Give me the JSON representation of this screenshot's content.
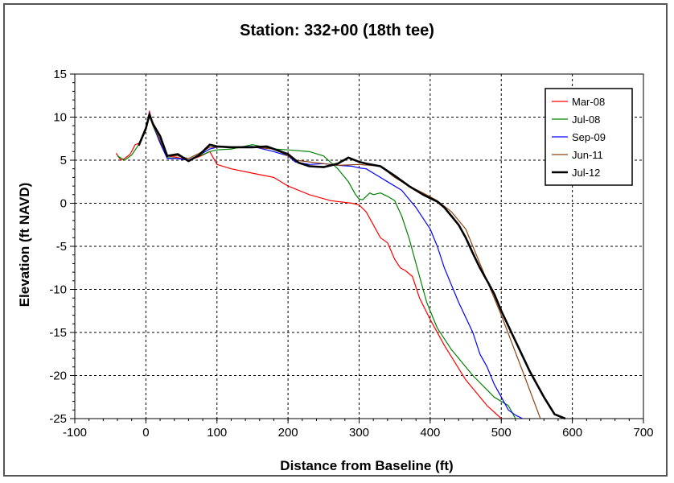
{
  "chart_data": {
    "type": "line",
    "title": "Station: 332+00 (18th tee)",
    "xlabel": "Distance from Baseline (ft)",
    "ylabel": "Elevation (ft NAVD)",
    "xlim": [
      -100,
      700
    ],
    "ylim": [
      -25,
      15
    ],
    "xticks": [
      -100,
      0,
      100,
      200,
      300,
      400,
      500,
      600,
      700
    ],
    "yticks": [
      15,
      10,
      5,
      0,
      -5,
      -10,
      -15,
      -20,
      -25
    ],
    "grid": true,
    "legend_position": "top-right",
    "series": [
      {
        "name": "Mar-08",
        "color": "#ff0000",
        "width": 1.2,
        "x": [
          -42,
          -35,
          -30,
          -22,
          -15,
          -8,
          0,
          5,
          10,
          20,
          30,
          45,
          60,
          75,
          90,
          100,
          120,
          150,
          180,
          200,
          230,
          260,
          290,
          300,
          310,
          320,
          330,
          340,
          350,
          358,
          365,
          375,
          385,
          400,
          420,
          450,
          480,
          500
        ],
        "y": [
          5.8,
          5.0,
          5.2,
          5.7,
          6.8,
          7.0,
          8.5,
          10.7,
          9.0,
          7.2,
          5.5,
          5.3,
          5.0,
          5.4,
          6.0,
          4.5,
          4.0,
          3.5,
          3.0,
          2.0,
          1.0,
          0.3,
          0,
          -0.2,
          -1.0,
          -2.5,
          -4.0,
          -4.6,
          -6.5,
          -7.5,
          -7.8,
          -8.5,
          -11.0,
          -13.5,
          -16.5,
          -20.5,
          -23.5,
          -25
        ]
      },
      {
        "name": "Jul-08",
        "color": "#008000",
        "width": 1.2,
        "x": [
          -40,
          -30,
          -20,
          -10,
          0,
          5,
          10,
          20,
          30,
          45,
          60,
          75,
          90,
          100,
          120,
          150,
          180,
          200,
          230,
          250,
          270,
          285,
          295,
          300,
          305,
          310,
          315,
          320,
          330,
          340,
          350,
          360,
          370,
          380,
          395,
          410,
          430,
          460,
          490,
          510,
          520
        ],
        "y": [
          5.5,
          5.0,
          5.6,
          6.8,
          8.5,
          10.4,
          9.0,
          7.0,
          5.3,
          5.2,
          5.0,
          5.5,
          6.0,
          6.2,
          6.3,
          6.8,
          6.3,
          6.2,
          6.0,
          5.5,
          4.0,
          2.5,
          1.0,
          0.5,
          0.4,
          0.8,
          1.2,
          1.0,
          1.2,
          0.8,
          0.3,
          -1.5,
          -4.0,
          -7.0,
          -11.5,
          -14.5,
          -17.0,
          -20.0,
          -22.5,
          -23.5,
          -25
        ]
      },
      {
        "name": "Sep-09",
        "color": "#0000ff",
        "width": 1.2,
        "x": [
          -10,
          0,
          5,
          10,
          20,
          30,
          45,
          60,
          75,
          90,
          100,
          120,
          150,
          180,
          200,
          210,
          230,
          250,
          270,
          290,
          300,
          310,
          320,
          330,
          340,
          360,
          380,
          400,
          410,
          420,
          440,
          460,
          470,
          480,
          490,
          500,
          510,
          520,
          530
        ],
        "y": [
          6.7,
          8.6,
          10.5,
          9.2,
          7.0,
          5.2,
          5.2,
          5.0,
          5.6,
          6.3,
          6.5,
          6.5,
          6.6,
          6.0,
          5.5,
          4.8,
          4.5,
          4.6,
          4.4,
          4.3,
          4.1,
          4.0,
          3.5,
          3.0,
          2.5,
          1.5,
          -0.5,
          -3.0,
          -5.0,
          -7.5,
          -11.5,
          -15.0,
          -17.5,
          -19.0,
          -21.0,
          -22.5,
          -24.0,
          -24.6,
          -25
        ]
      },
      {
        "name": "Jun-11",
        "color": "#8b4513",
        "width": 1.2,
        "x": [
          -10,
          0,
          5,
          10,
          20,
          30,
          45,
          60,
          75,
          90,
          100,
          120,
          150,
          180,
          200,
          210,
          230,
          250,
          270,
          300,
          330,
          350,
          370,
          390,
          410,
          430,
          440,
          450,
          470,
          500,
          530,
          555
        ],
        "y": [
          6.7,
          8.7,
          10.4,
          9.2,
          7.3,
          5.5,
          5.5,
          5.2,
          5.8,
          6.5,
          6.5,
          6.5,
          6.5,
          6.3,
          5.5,
          5.0,
          4.8,
          4.6,
          4.4,
          4.5,
          4.3,
          3.0,
          2.0,
          1.2,
          0.3,
          -1.0,
          -2.0,
          -3.0,
          -7.0,
          -13.0,
          -19.5,
          -25
        ]
      },
      {
        "name": "Jul-12",
        "color": "#000000",
        "width": 2.6,
        "x": [
          -10,
          0,
          5,
          10,
          20,
          30,
          45,
          60,
          75,
          90,
          100,
          120,
          150,
          170,
          200,
          215,
          230,
          250,
          270,
          285,
          300,
          310,
          330,
          350,
          370,
          390,
          410,
          420,
          430,
          440,
          450,
          460,
          470,
          480,
          490,
          500,
          520,
          540,
          560,
          575,
          590
        ],
        "y": [
          6.7,
          8.7,
          10.3,
          9.2,
          7.8,
          5.5,
          5.7,
          4.9,
          5.6,
          6.8,
          6.6,
          6.5,
          6.5,
          6.6,
          5.7,
          4.7,
          4.3,
          4.2,
          4.6,
          5.3,
          4.8,
          4.6,
          4.3,
          3.2,
          2.0,
          1.0,
          0.2,
          -0.5,
          -1.5,
          -2.5,
          -4.0,
          -5.8,
          -7.5,
          -9.0,
          -10.5,
          -12.5,
          -16.0,
          -19.5,
          -22.5,
          -24.5,
          -25
        ]
      }
    ]
  }
}
